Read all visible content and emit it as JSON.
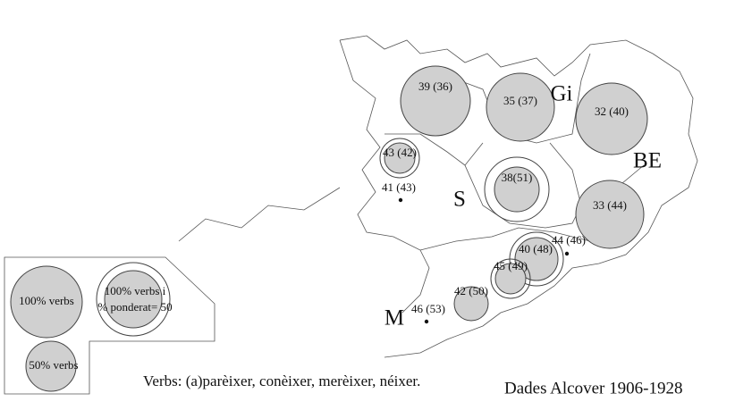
{
  "map": {
    "places": [
      {
        "label": "39 (36)"
      },
      {
        "label": "35 (37)"
      },
      {
        "label": "32 (40)"
      },
      {
        "label": "43 (42)"
      },
      {
        "label": "41 (43)"
      },
      {
        "label": "38(51)"
      },
      {
        "label": "33 (44)"
      },
      {
        "label": "40 (48)"
      },
      {
        "label": "44 (46)"
      },
      {
        "label": "45 (49)"
      },
      {
        "label": "42 (50)"
      },
      {
        "label": "46 (53)"
      }
    ],
    "regions": [
      "Gi",
      "BE",
      "S",
      "M"
    ],
    "legend": {
      "items": [
        {
          "lines": [
            "100% verbs"
          ]
        },
        {
          "lines": [
            "100% verbs  i",
            "% ponderat= 50"
          ]
        },
        {
          "lines": [
            "50% verbs"
          ]
        }
      ]
    },
    "caption": "Verbs: (a)parèixer, conèixer, merèixer, néixer.",
    "source": "Dades Alcover 1906-1928"
  }
}
